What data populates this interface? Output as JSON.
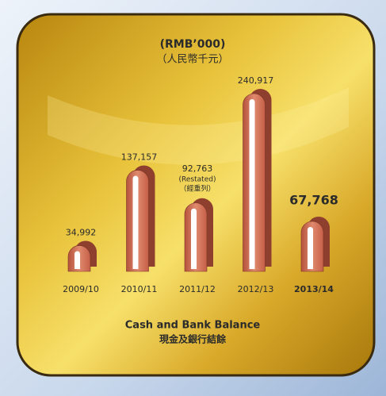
{
  "chart_data": {
    "type": "bar",
    "unit_label": "(RMB’000)",
    "unit_label_zh": "（人民幣千元）",
    "title": "Cash and Bank Balance",
    "title_zh": "現金及銀行結餘",
    "categories": [
      "2009/10",
      "2010/11",
      "2011/12",
      "2012/13",
      "2013/14"
    ],
    "values": [
      34992,
      137157,
      92763,
      240917,
      67768
    ],
    "value_labels": [
      "34,992",
      "137,157",
      "92,763",
      "240,917",
      "67,768"
    ],
    "value_notes": [
      null,
      null,
      [
        "(Restated)",
        "（經重列）"
      ],
      null,
      null
    ],
    "color": "#c9654d"
  }
}
